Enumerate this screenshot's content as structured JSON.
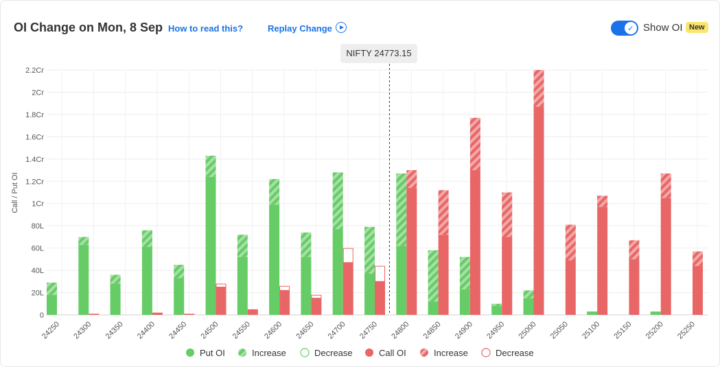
{
  "header": {
    "title": "OI Change on Mon, 8 Sep",
    "how_to_read": "How to read this?",
    "replay": "Replay Change",
    "toggle_label": "Show OI",
    "badge": "New"
  },
  "spot": {
    "label": "NIFTY 24773.15"
  },
  "colors": {
    "put": "#66cc66",
    "put_increase_stripe": "#a6e0a6",
    "call": "#e96666",
    "call_increase_stripe": "#f2a9a9",
    "link": "#1a73e8",
    "badge": "#fbe56b"
  },
  "legend": [
    {
      "label": "Put OI",
      "kind": "put-solid"
    },
    {
      "label": "Increase",
      "kind": "put-increase"
    },
    {
      "label": "Decrease",
      "kind": "put-decrease"
    },
    {
      "label": "Call OI",
      "kind": "call-solid"
    },
    {
      "label": "Increase",
      "kind": "call-increase"
    },
    {
      "label": "Decrease",
      "kind": "call-decrease"
    }
  ],
  "chart_data": {
    "type": "bar",
    "ylabel": "Call / Put OI",
    "ylim": [
      0,
      22000000
    ],
    "y_ticks": [
      {
        "value": 0,
        "label": "0"
      },
      {
        "value": 2000000,
        "label": "20L"
      },
      {
        "value": 4000000,
        "label": "40L"
      },
      {
        "value": 6000000,
        "label": "60L"
      },
      {
        "value": 8000000,
        "label": "80L"
      },
      {
        "value": 10000000,
        "label": "1Cr"
      },
      {
        "value": 12000000,
        "label": "1.2Cr"
      },
      {
        "value": 14000000,
        "label": "1.4Cr"
      },
      {
        "value": 16000000,
        "label": "1.6Cr"
      },
      {
        "value": 18000000,
        "label": "1.8Cr"
      },
      {
        "value": 20000000,
        "label": "2Cr"
      },
      {
        "value": 22000000,
        "label": "2.2Cr"
      }
    ],
    "spot_price": 24773.15,
    "categories": [
      "24250",
      "24300",
      "24350",
      "24400",
      "24450",
      "24500",
      "24550",
      "24600",
      "24650",
      "24700",
      "24750",
      "24800",
      "24850",
      "24900",
      "24950",
      "25000",
      "25050",
      "25100",
      "25150",
      "25200",
      "25250"
    ],
    "series": [
      {
        "name": "Put OI",
        "values": [
          1800000,
          6300000,
          2800000,
          6100000,
          3300000,
          12400000,
          5200000,
          9900000,
          5200000,
          7700000,
          3700000,
          6200000,
          1200000,
          2300000,
          800000,
          1500000,
          0,
          300000,
          0,
          300000,
          0
        ]
      },
      {
        "name": "Increase",
        "values": [
          1100000,
          700000,
          800000,
          1500000,
          1200000,
          1900000,
          2000000,
          2300000,
          2200000,
          5100000,
          4200000,
          6500000,
          4600000,
          2900000,
          200000,
          700000,
          0,
          0,
          0,
          0,
          0
        ]
      },
      {
        "name": "Decrease",
        "values": [
          0,
          0,
          0,
          0,
          0,
          0,
          0,
          0,
          0,
          0,
          0,
          0,
          0,
          0,
          0,
          0,
          0,
          0,
          0,
          0,
          0
        ]
      },
      {
        "name": "Call OI",
        "values": [
          0,
          100000,
          0,
          200000,
          100000,
          2500000,
          500000,
          2200000,
          1500000,
          4700000,
          3000000,
          11400000,
          7200000,
          13000000,
          7000000,
          18700000,
          4900000,
          9700000,
          5000000,
          10500000,
          4400000
        ]
      },
      {
        "name": "Increase",
        "values": [
          0,
          0,
          0,
          0,
          0,
          0,
          0,
          0,
          0,
          0,
          0,
          1600000,
          4000000,
          4700000,
          4000000,
          3300000,
          3200000,
          1000000,
          1700000,
          2200000,
          1300000
        ]
      },
      {
        "name": "Decrease",
        "values": [
          0,
          0,
          0,
          0,
          0,
          300000,
          0,
          400000,
          300000,
          1300000,
          1400000,
          0,
          0,
          0,
          0,
          0,
          0,
          0,
          0,
          0,
          0
        ]
      }
    ]
  }
}
